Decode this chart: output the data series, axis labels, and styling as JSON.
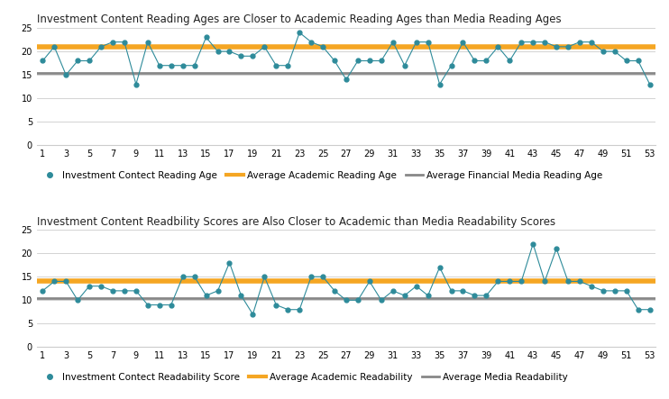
{
  "title1": "Investment Content Reading Ages are Closer to Academic Reading Ages than Media Reading Ages",
  "title2": "Investment Content Readbility Scores are Also Closer to Academic than Media Readability Scores",
  "x_labels": [
    1,
    3,
    5,
    7,
    9,
    11,
    13,
    15,
    17,
    19,
    21,
    23,
    25,
    27,
    29,
    31,
    33,
    35,
    37,
    39,
    41,
    43,
    45,
    47,
    49,
    51,
    53
  ],
  "reading_ages": [
    18,
    21,
    15,
    18,
    18,
    21,
    22,
    22,
    13,
    22,
    17,
    17,
    17,
    17,
    23,
    20,
    20,
    19,
    19,
    21,
    17,
    17,
    24,
    22,
    21,
    18,
    14,
    18,
    18,
    18,
    22,
    17,
    22,
    22,
    13,
    17,
    22,
    18,
    18,
    21,
    18,
    22,
    22,
    22,
    21,
    21,
    22,
    22,
    20,
    20,
    18,
    18,
    13
  ],
  "avg_academic_reading_age": 21.0,
  "avg_media_reading_age": 15.5,
  "readability_scores": [
    12,
    14,
    14,
    10,
    13,
    13,
    12,
    12,
    12,
    9,
    9,
    9,
    15,
    15,
    11,
    12,
    18,
    11,
    7,
    15,
    9,
    8,
    8,
    15,
    15,
    12,
    10,
    10,
    14,
    10,
    12,
    11,
    13,
    11,
    17,
    12,
    12,
    11,
    11,
    14,
    14,
    14,
    22,
    14,
    21,
    14,
    14,
    13,
    12,
    12,
    12,
    8,
    8
  ],
  "avg_academic_readability": 14.0,
  "avg_media_readability": 10.5,
  "dot_color": "#2E8B9A",
  "line_color": "#2E8B9A",
  "academic_line_color": "#F5A623",
  "media_line_color": "#888888",
  "background_color": "#ffffff",
  "title_color": "#222222",
  "title_fontsize": 8.5,
  "tick_fontsize": 7,
  "legend_fontsize": 7.5,
  "ylim1": [
    0,
    25
  ],
  "ylim2": [
    0,
    25
  ],
  "yticks": [
    0,
    5,
    10,
    15,
    20,
    25
  ]
}
